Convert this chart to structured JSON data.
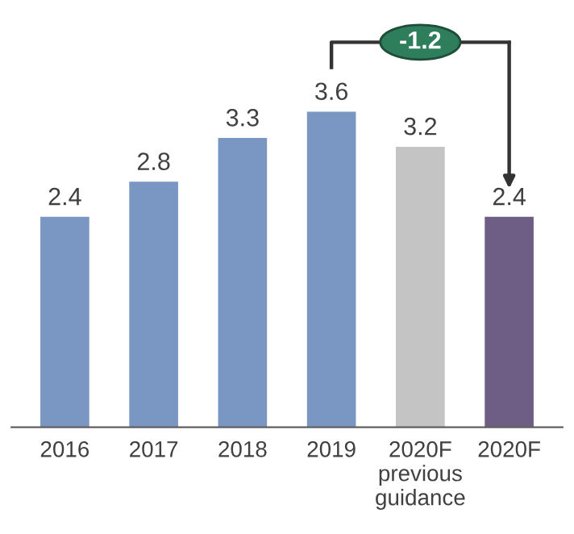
{
  "chart_data": {
    "type": "bar",
    "categories": [
      "2016",
      "2017",
      "2018",
      "2019",
      "2020F\nprevious\nguidance",
      "2020F"
    ],
    "values": [
      2.4,
      2.8,
      3.3,
      3.6,
      3.2,
      2.4
    ],
    "colors": [
      "#7a96c2",
      "#7a96c2",
      "#7a96c2",
      "#7a96c2",
      "#c4c4c4",
      "#6e5e86"
    ],
    "data_labels": true,
    "annotations": [
      "-1.2"
    ]
  }
}
